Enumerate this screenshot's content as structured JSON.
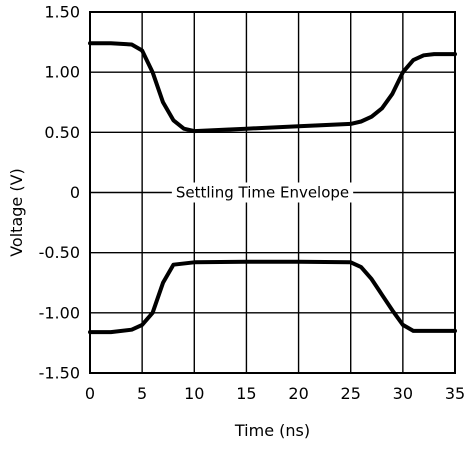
{
  "chart_data": {
    "type": "line",
    "title": "",
    "xlabel": "Time (ns)",
    "ylabel": "Voltage (V)",
    "xlim": [
      0,
      35
    ],
    "ylim": [
      -1.5,
      1.5
    ],
    "x_ticks": [
      0,
      5,
      10,
      15,
      20,
      25,
      30,
      35
    ],
    "x_tick_labels": [
      "0",
      "5",
      "10",
      "15",
      "20",
      "25",
      "30",
      "35"
    ],
    "y_ticks": [
      1.5,
      1.0,
      0.5,
      0,
      -0.5,
      -1.0,
      -1.5
    ],
    "y_tick_labels": [
      "1.50",
      "1.00",
      "0.50",
      "0",
      "-0.50",
      "-1.00",
      "-1.50"
    ],
    "grid": true,
    "annotation": "Settling Time Envelope",
    "series": [
      {
        "x": [
          0,
          2,
          4,
          5,
          6,
          7,
          8,
          9,
          10,
          15,
          20,
          25,
          26,
          27,
          28,
          29,
          30,
          31,
          32,
          33,
          35
        ],
        "y": [
          1.24,
          1.24,
          1.23,
          1.18,
          1.0,
          0.75,
          0.6,
          0.53,
          0.51,
          0.53,
          0.55,
          0.57,
          0.59,
          0.63,
          0.7,
          0.82,
          1.0,
          1.1,
          1.14,
          1.15,
          1.15
        ]
      },
      {
        "x": [
          0,
          2,
          4,
          5,
          6,
          7,
          8,
          10,
          15,
          20,
          25,
          26,
          27,
          28,
          29,
          30,
          31,
          32,
          35
        ],
        "y": [
          -1.16,
          -1.16,
          -1.14,
          -1.1,
          -1.0,
          -0.75,
          -0.6,
          -0.58,
          -0.575,
          -0.575,
          -0.58,
          -0.62,
          -0.72,
          -0.85,
          -0.98,
          -1.1,
          -1.15,
          -1.15,
          -1.15
        ]
      }
    ]
  }
}
